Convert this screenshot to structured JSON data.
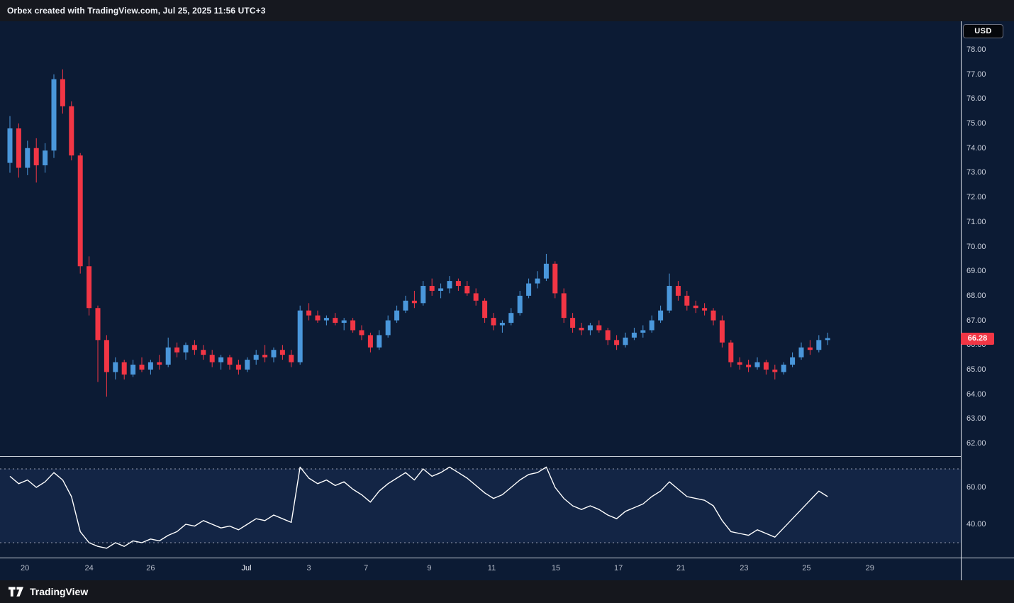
{
  "header": {
    "title": "Orbex created with TradingView.com, Jul 25, 2025 11:56 UTC+3"
  },
  "price_scale": {
    "currency_button": "USD",
    "last_price_badge": "66.28"
  },
  "footer": {
    "brand": "TradingView"
  },
  "colors": {
    "background": "#131722",
    "panel_background": "#0c1b34",
    "candle_up": "#4a97db",
    "candle_down": "#f23645",
    "last_price_badge": "#f23645",
    "oscillator_line": "#ffffff",
    "band_line": "#a7adbd",
    "band_fill": "#2e4a86",
    "axis_text": "#ccd1dd",
    "separator": "#e9edf5"
  },
  "chart_data": {
    "type": "candlestick",
    "price_currency": "USD",
    "last_price": 66.28,
    "ylim": [
      61.5,
      79.2
    ],
    "price_axis_ticks": [
      "78.00",
      "77.00",
      "76.00",
      "75.00",
      "74.00",
      "73.00",
      "72.00",
      "71.00",
      "70.00",
      "69.00",
      "68.00",
      "67.00",
      "66.00",
      "65.00",
      "64.00",
      "63.00",
      "62.00"
    ],
    "time_axis_labels": [
      {
        "text": "20",
        "index": 1.7
      },
      {
        "text": "24",
        "index": 9
      },
      {
        "text": "26",
        "index": 16
      },
      {
        "text": "Jul",
        "index": 26.9,
        "emphasis": true
      },
      {
        "text": "3",
        "index": 34
      },
      {
        "text": "7",
        "index": 40.5
      },
      {
        "text": "9",
        "index": 47.7
      },
      {
        "text": "11",
        "index": 54.8
      },
      {
        "text": "15",
        "index": 62.1
      },
      {
        "text": "17",
        "index": 69.2
      },
      {
        "text": "21",
        "index": 76.3
      },
      {
        "text": "23",
        "index": 83.5
      },
      {
        "text": "25",
        "index": 90.6
      },
      {
        "text": "29",
        "index": 97.8
      }
    ],
    "candles_ohlc": [
      [
        73.4,
        75.3,
        73.0,
        74.8
      ],
      [
        74.8,
        75.0,
        72.8,
        73.2
      ],
      [
        73.2,
        74.3,
        72.9,
        74.0
      ],
      [
        74.0,
        74.4,
        72.6,
        73.3
      ],
      [
        73.3,
        74.2,
        73.0,
        73.9
      ],
      [
        73.9,
        77.0,
        73.6,
        76.8
      ],
      [
        76.8,
        77.2,
        75.4,
        75.7
      ],
      [
        75.7,
        75.9,
        73.5,
        73.7
      ],
      [
        73.7,
        73.8,
        68.9,
        69.2
      ],
      [
        69.2,
        69.6,
        67.2,
        67.5
      ],
      [
        67.5,
        67.6,
        64.5,
        66.2
      ],
      [
        66.2,
        66.4,
        63.9,
        64.9
      ],
      [
        64.9,
        65.5,
        64.6,
        65.3
      ],
      [
        65.3,
        65.4,
        64.6,
        64.8
      ],
      [
        64.8,
        65.4,
        64.7,
        65.2
      ],
      [
        65.2,
        65.5,
        64.9,
        65.0
      ],
      [
        65.0,
        65.4,
        64.8,
        65.3
      ],
      [
        65.3,
        65.6,
        65.0,
        65.2
      ],
      [
        65.2,
        66.3,
        65.1,
        65.9
      ],
      [
        65.9,
        66.1,
        65.5,
        65.7
      ],
      [
        65.7,
        66.1,
        65.4,
        66.0
      ],
      [
        66.0,
        66.2,
        65.6,
        65.8
      ],
      [
        65.8,
        66.0,
        65.4,
        65.6
      ],
      [
        65.6,
        65.8,
        65.1,
        65.3
      ],
      [
        65.3,
        65.6,
        65.0,
        65.5
      ],
      [
        65.5,
        65.6,
        65.0,
        65.2
      ],
      [
        65.2,
        65.4,
        64.8,
        65.0
      ],
      [
        65.0,
        65.5,
        64.9,
        65.4
      ],
      [
        65.4,
        65.8,
        65.2,
        65.6
      ],
      [
        65.6,
        66.0,
        65.3,
        65.5
      ],
      [
        65.5,
        65.9,
        65.3,
        65.8
      ],
      [
        65.8,
        66.0,
        65.4,
        65.6
      ],
      [
        65.6,
        65.8,
        65.1,
        65.3
      ],
      [
        65.3,
        67.6,
        65.2,
        67.4
      ],
      [
        67.4,
        67.7,
        67.0,
        67.2
      ],
      [
        67.2,
        67.4,
        66.9,
        67.0
      ],
      [
        67.0,
        67.2,
        66.8,
        67.1
      ],
      [
        67.1,
        67.3,
        66.8,
        66.9
      ],
      [
        66.9,
        67.1,
        66.6,
        67.0
      ],
      [
        67.0,
        67.1,
        66.5,
        66.6
      ],
      [
        66.6,
        66.8,
        66.2,
        66.4
      ],
      [
        66.4,
        66.5,
        65.7,
        65.9
      ],
      [
        65.9,
        66.6,
        65.8,
        66.4
      ],
      [
        66.4,
        67.2,
        66.3,
        67.0
      ],
      [
        67.0,
        67.6,
        66.9,
        67.4
      ],
      [
        67.4,
        68.0,
        67.3,
        67.8
      ],
      [
        67.8,
        68.2,
        67.5,
        67.7
      ],
      [
        67.7,
        68.6,
        67.6,
        68.4
      ],
      [
        68.4,
        68.7,
        68.0,
        68.2
      ],
      [
        68.2,
        68.5,
        67.9,
        68.3
      ],
      [
        68.3,
        68.8,
        68.1,
        68.6
      ],
      [
        68.6,
        68.7,
        68.2,
        68.4
      ],
      [
        68.4,
        68.6,
        68.0,
        68.1
      ],
      [
        68.1,
        68.3,
        67.6,
        67.8
      ],
      [
        67.8,
        67.9,
        66.9,
        67.1
      ],
      [
        67.1,
        67.3,
        66.6,
        66.8
      ],
      [
        66.8,
        67.0,
        66.5,
        66.9
      ],
      [
        66.9,
        67.5,
        66.8,
        67.3
      ],
      [
        67.3,
        68.2,
        67.2,
        68.0
      ],
      [
        68.0,
        68.7,
        67.9,
        68.5
      ],
      [
        68.5,
        69.0,
        68.3,
        68.7
      ],
      [
        68.7,
        69.7,
        68.6,
        69.3
      ],
      [
        69.3,
        69.4,
        67.9,
        68.1
      ],
      [
        68.1,
        68.3,
        66.9,
        67.1
      ],
      [
        67.1,
        67.3,
        66.5,
        66.7
      ],
      [
        66.7,
        66.9,
        66.4,
        66.6
      ],
      [
        66.6,
        66.9,
        66.4,
        66.8
      ],
      [
        66.8,
        67.0,
        66.5,
        66.6
      ],
      [
        66.6,
        66.7,
        66.0,
        66.2
      ],
      [
        66.2,
        66.4,
        65.8,
        66.0
      ],
      [
        66.0,
        66.5,
        65.9,
        66.3
      ],
      [
        66.3,
        66.7,
        66.2,
        66.5
      ],
      [
        66.5,
        66.8,
        66.3,
        66.6
      ],
      [
        66.6,
        67.2,
        66.5,
        67.0
      ],
      [
        67.0,
        67.6,
        66.9,
        67.4
      ],
      [
        67.4,
        68.9,
        67.3,
        68.4
      ],
      [
        68.4,
        68.6,
        67.8,
        68.0
      ],
      [
        68.0,
        68.2,
        67.4,
        67.6
      ],
      [
        67.6,
        67.8,
        67.3,
        67.5
      ],
      [
        67.5,
        67.7,
        67.2,
        67.4
      ],
      [
        67.4,
        67.5,
        66.8,
        67.0
      ],
      [
        67.0,
        67.2,
        65.9,
        66.1
      ],
      [
        66.1,
        66.2,
        65.1,
        65.3
      ],
      [
        65.3,
        65.5,
        65.0,
        65.2
      ],
      [
        65.2,
        65.4,
        64.9,
        65.1
      ],
      [
        65.1,
        65.5,
        65.0,
        65.3
      ],
      [
        65.3,
        65.4,
        64.8,
        65.0
      ],
      [
        65.0,
        65.2,
        64.6,
        64.9
      ],
      [
        64.9,
        65.3,
        64.8,
        65.2
      ],
      [
        65.2,
        65.7,
        65.1,
        65.5
      ],
      [
        65.5,
        66.1,
        65.4,
        65.9
      ],
      [
        65.9,
        66.2,
        65.6,
        65.8
      ],
      [
        65.8,
        66.4,
        65.7,
        66.2
      ],
      [
        66.2,
        66.5,
        66.0,
        66.28
      ]
    ],
    "oscillator": {
      "values": [
        66,
        62,
        64,
        60,
        63,
        68,
        64,
        55,
        36,
        30,
        28,
        27,
        30,
        28,
        31,
        30,
        32,
        31,
        34,
        36,
        40,
        39,
        42,
        40,
        38,
        39,
        37,
        40,
        43,
        42,
        45,
        43,
        41,
        71,
        65,
        62,
        64,
        61,
        63,
        59,
        56,
        52,
        58,
        62,
        65,
        68,
        64,
        70,
        66,
        68,
        71,
        68,
        65,
        61,
        57,
        54,
        56,
        60,
        64,
        67,
        68,
        71,
        60,
        54,
        50,
        48,
        50,
        48,
        45,
        43,
        47,
        49,
        51,
        55,
        58,
        63,
        59,
        55,
        54,
        53,
        50,
        42,
        36,
        35,
        34,
        37,
        35,
        33,
        38,
        43,
        48,
        53,
        58,
        55
      ],
      "upper_band": 70,
      "lower_band": 30,
      "axis_ticks": [
        "60.00",
        "40.00"
      ]
    }
  }
}
